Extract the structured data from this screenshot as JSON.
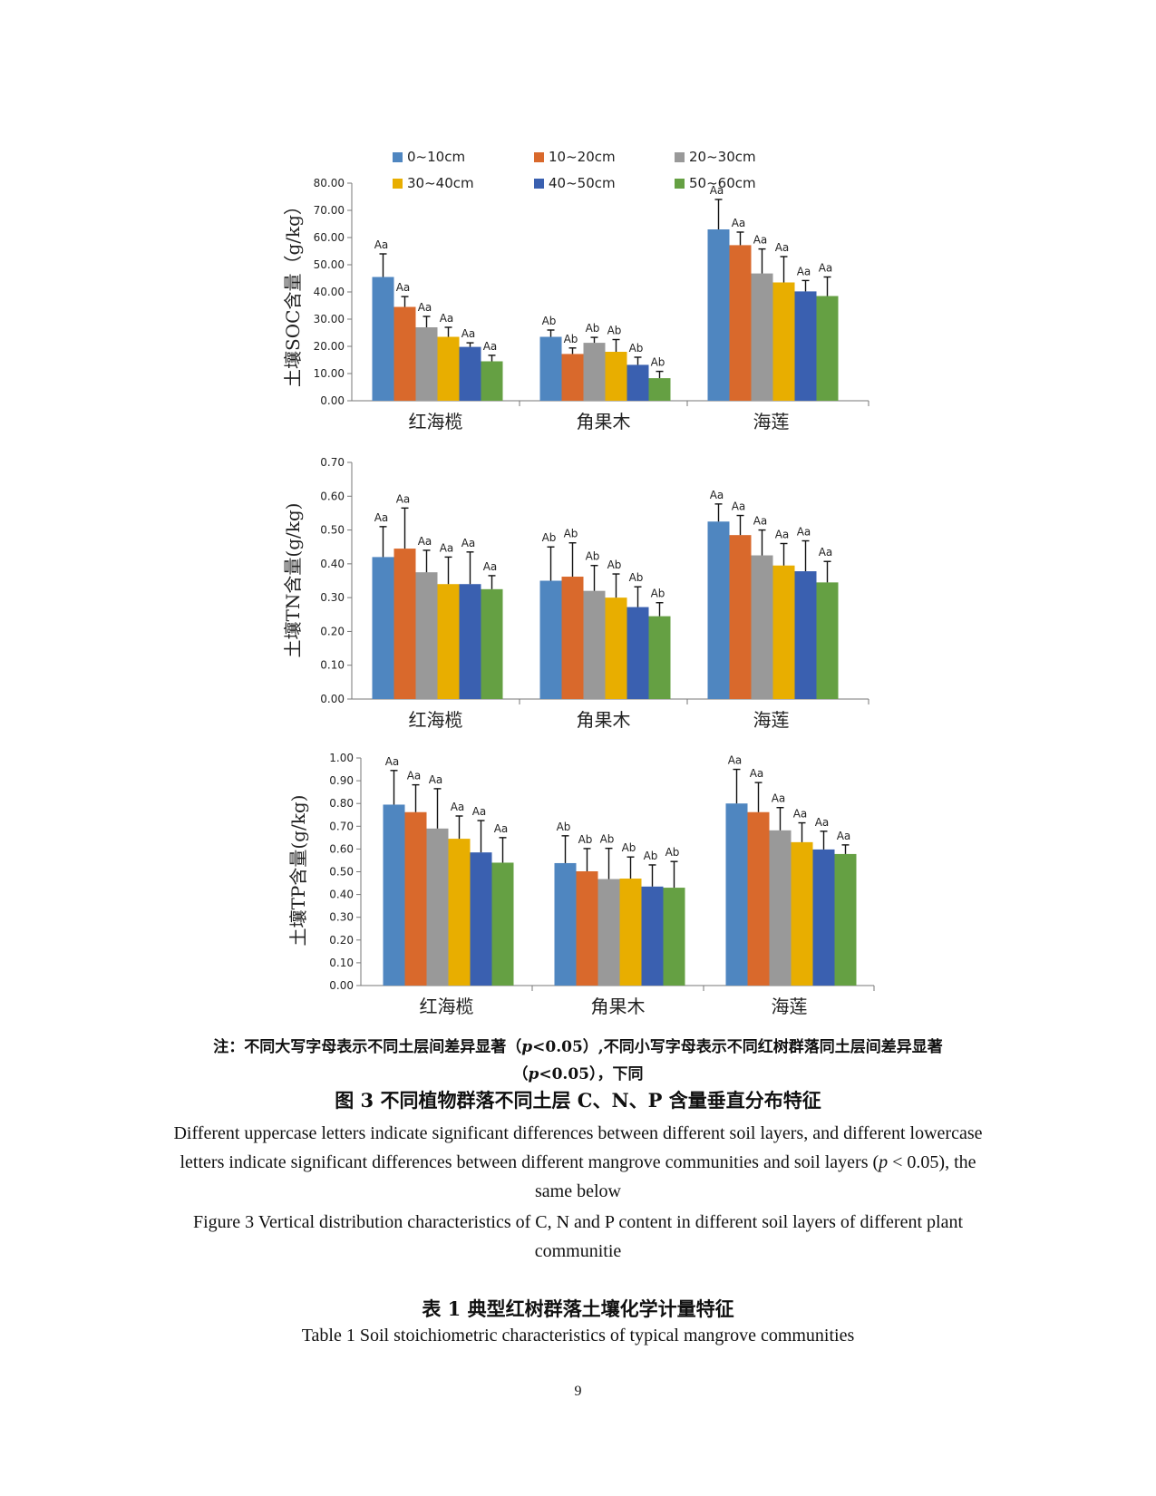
{
  "chart_data": [
    {
      "type": "bar",
      "ylabel": "土壤SOC含量（g/kg）",
      "ylim": [
        0,
        80
      ],
      "yticks": [
        "0.00",
        "10.00",
        "20.00",
        "30.00",
        "40.00",
        "50.00",
        "60.00",
        "70.00",
        "80.00"
      ],
      "categories": [
        "红海榄",
        "角果木",
        "海莲"
      ],
      "legend": [
        "0~10cm",
        "10~20cm",
        "20~30cm",
        "30~40cm",
        "40~50cm",
        "50~60cm"
      ],
      "values": [
        [
          45.5,
          34.5,
          27,
          23.5,
          19.8,
          14.5
        ],
        [
          23.5,
          17.2,
          21.3,
          18,
          13.2,
          8.3
        ],
        [
          63,
          57.2,
          46.8,
          43.5,
          40.2,
          38.5
        ]
      ],
      "errors": [
        [
          8.5,
          3.8,
          4,
          3.5,
          1.5,
          2.2
        ],
        [
          2.5,
          2.2,
          2,
          4.5,
          2.8,
          2.5
        ],
        [
          11,
          4.8,
          9,
          9.5,
          4,
          7
        ]
      ],
      "letters": [
        [
          "Aa",
          "Aa",
          "Aa",
          "Aa",
          "Aa",
          "Aa"
        ],
        [
          "Ab",
          "Ab",
          "Ab",
          "Ab",
          "Ab",
          "Ab"
        ],
        [
          "Aa",
          "Aa",
          "Aa",
          "Aa",
          "Aa",
          "Aa"
        ]
      ]
    },
    {
      "type": "bar",
      "ylabel": "土壤TN含量(g/kg)",
      "ylim": [
        0,
        0.7
      ],
      "yticks": [
        "0.00",
        "0.10",
        "0.20",
        "0.30",
        "0.40",
        "0.50",
        "0.60",
        "0.70"
      ],
      "categories": [
        "红海榄",
        "角果木",
        "海莲"
      ],
      "values": [
        [
          0.42,
          0.445,
          0.375,
          0.34,
          0.34,
          0.325
        ],
        [
          0.35,
          0.362,
          0.32,
          0.3,
          0.272,
          0.245
        ],
        [
          0.525,
          0.485,
          0.425,
          0.395,
          0.378,
          0.345
        ]
      ],
      "errors": [
        [
          0.09,
          0.12,
          0.065,
          0.08,
          0.095,
          0.04
        ],
        [
          0.1,
          0.1,
          0.075,
          0.07,
          0.06,
          0.04
        ],
        [
          0.052,
          0.058,
          0.075,
          0.065,
          0.09,
          0.062
        ]
      ],
      "letters": [
        [
          "Aa",
          "Aa",
          "Aa",
          "Aa",
          "Aa",
          "Aa"
        ],
        [
          "Ab",
          "Ab",
          "Ab",
          "Ab",
          "Ab",
          "Ab"
        ],
        [
          "Aa",
          "Aa",
          "Aa",
          "Aa",
          "Aa",
          "Aa"
        ]
      ]
    },
    {
      "type": "bar",
      "ylabel": "土壤TP含量(g/kg)",
      "ylim": [
        0,
        1
      ],
      "yticks": [
        "0.00",
        "0.10",
        "0.20",
        "0.30",
        "0.40",
        "0.50",
        "0.60",
        "0.70",
        "0.80",
        "0.90",
        "1.00"
      ],
      "categories": [
        "红海榄",
        "角果木",
        "海莲"
      ],
      "values": [
        [
          0.795,
          0.762,
          0.69,
          0.645,
          0.585,
          0.54
        ],
        [
          0.538,
          0.502,
          0.468,
          0.47,
          0.435,
          0.43
        ],
        [
          0.8,
          0.762,
          0.682,
          0.63,
          0.598,
          0.578
        ]
      ],
      "errors": [
        [
          0.15,
          0.12,
          0.175,
          0.1,
          0.14,
          0.11
        ],
        [
          0.12,
          0.1,
          0.135,
          0.095,
          0.095,
          0.115
        ],
        [
          0.15,
          0.13,
          0.1,
          0.085,
          0.08,
          0.04
        ]
      ],
      "letters": [
        [
          "Aa",
          "Aa",
          "Aa",
          "Aa",
          "Aa",
          "Aa"
        ],
        [
          "Ab",
          "Ab",
          "Ab",
          "Ab",
          "Ab",
          "Ab"
        ],
        [
          "Aa",
          "Aa",
          "Aa",
          "Aa",
          "Aa",
          "Aa"
        ]
      ]
    }
  ],
  "colors": [
    "#4f86c0",
    "#d9692c",
    "#999999",
    "#e8ae00",
    "#3a60b0",
    "#65a043"
  ],
  "text": {
    "note_prefix": "注：不同大写字母表示不同土层间差异显著（",
    "note_p": "p",
    "note_mid": "<0.05）,不同小写字母表示不同红树群落同土层间差异显著",
    "note_p2": "p",
    "note_end": "<0.05），下同",
    "note_open2": "（",
    "fig_cn": "图  3 不同植物群落不同土层  C、N、P 含量垂直分布特征",
    "fig_en_1": "Different uppercase letters indicate significant differences between different soil layers, and different lowercase letters indicate significant differences between different mangrove communities and soil layers (",
    "fig_en_p": "p",
    "fig_en_2": " < 0.05), the same below",
    "fig_en2": "Figure 3 Vertical distribution characteristics of C, N and P content in different soil layers of different plant communitie",
    "tab_cn": "表 1 典型红树群落土壤化学计量特征",
    "tab_en": "Table 1 Soil stoichiometric characteristics of typical mangrove communities",
    "page_number": "9"
  }
}
